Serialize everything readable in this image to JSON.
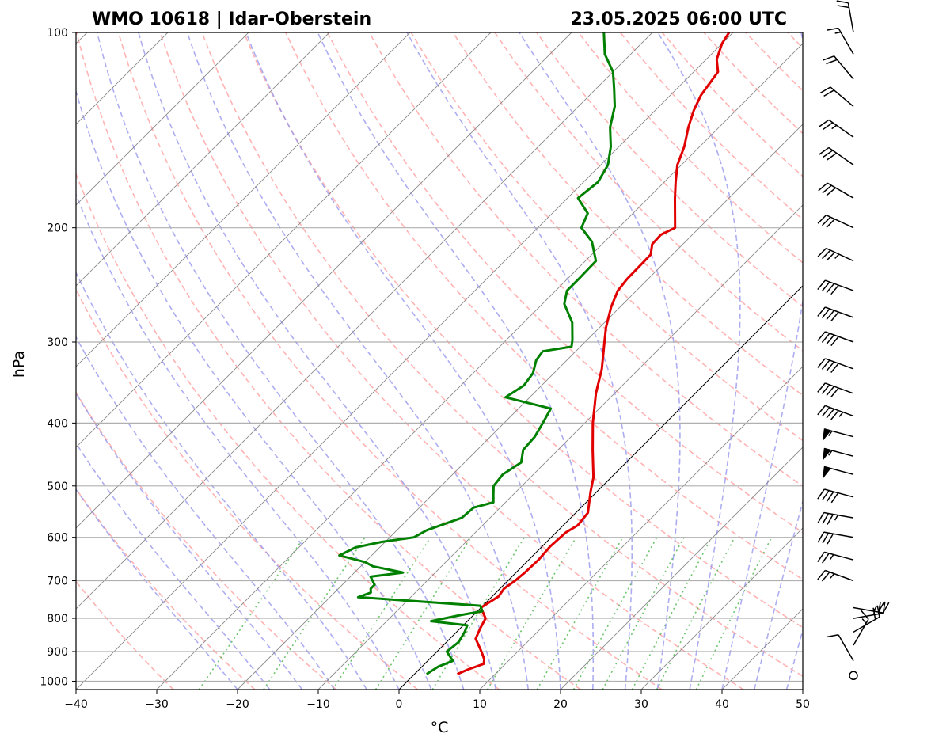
{
  "title_left": "WMO 10618 | Idar-Oberstein",
  "title_right": "23.05.2025 06:00 UTC",
  "chart_data": {
    "type": "line",
    "subtype": "skew-t log-p",
    "xlabel": "°C",
    "ylabel": "hPa",
    "xlim": [
      -40,
      50
    ],
    "ylim": [
      1030,
      100
    ],
    "x_ticks": [
      -40,
      -30,
      -20,
      -10,
      0,
      10,
      20,
      30,
      40,
      50
    ],
    "y_ticks": [
      100,
      200,
      300,
      400,
      500,
      600,
      700,
      800,
      900,
      1000
    ],
    "grid": true,
    "colors": {
      "temperature": "#e00000",
      "dewpoint": "#008000",
      "dry_adiabat": "#ff9999",
      "moist_adiabat": "#9999ee",
      "mixing_ratio": "#55bb55",
      "isotherm": "#888888",
      "zero_isotherm": "#000000"
    },
    "series": [
      {
        "key": "temperature",
        "values": [
          [
            975,
            5.3
          ],
          [
            960,
            6.0
          ],
          [
            940,
            7.3
          ],
          [
            925,
            6.8
          ],
          [
            900,
            5.5
          ],
          [
            860,
            3.2
          ],
          [
            830,
            2.5
          ],
          [
            800,
            1.9
          ],
          [
            770,
            0
          ],
          [
            740,
            0.8
          ],
          [
            720,
            0.5
          ],
          [
            700,
            0.9
          ],
          [
            680,
            1.1
          ],
          [
            650,
            1.2
          ],
          [
            620,
            1.0
          ],
          [
            590,
            1.2
          ],
          [
            575,
            1.8
          ],
          [
            550,
            1.5
          ],
          [
            510,
            -0.8
          ],
          [
            485,
            -2.2
          ],
          [
            440,
            -5.7
          ],
          [
            400,
            -9.0
          ],
          [
            360,
            -12.3
          ],
          [
            330,
            -14.6
          ],
          [
            300,
            -17.6
          ],
          [
            285,
            -19.2
          ],
          [
            265,
            -21.1
          ],
          [
            250,
            -22.3
          ],
          [
            240,
            -22.6
          ],
          [
            220,
            -22.7
          ],
          [
            212,
            -23.8
          ],
          [
            205,
            -23.9
          ],
          [
            200,
            -23.0
          ],
          [
            190,
            -24.8
          ],
          [
            180,
            -26.7
          ],
          [
            170,
            -28.6
          ],
          [
            160,
            -30.5
          ],
          [
            150,
            -31.9
          ],
          [
            140,
            -33.8
          ],
          [
            132,
            -35.2
          ],
          [
            125,
            -36.2
          ],
          [
            115,
            -37.0
          ],
          [
            110,
            -38.7
          ],
          [
            104,
            -40.0
          ],
          [
            100,
            -40.5
          ]
        ]
      },
      {
        "key": "dewpoint",
        "values": [
          [
            975,
            1.5
          ],
          [
            950,
            2.0
          ],
          [
            930,
            3.1
          ],
          [
            900,
            1.2
          ],
          [
            870,
            1.5
          ],
          [
            840,
            1.0
          ],
          [
            820,
            0.5
          ],
          [
            808,
            -4.5
          ],
          [
            790,
            -1.5
          ],
          [
            780,
            0.6
          ],
          [
            765,
            -0.3
          ],
          [
            742,
            -16.5
          ],
          [
            730,
            -15.5
          ],
          [
            720,
            -16.0
          ],
          [
            710,
            -16.0
          ],
          [
            690,
            -17.5
          ],
          [
            680,
            -14.0
          ],
          [
            665,
            -18.5
          ],
          [
            655,
            -20.0
          ],
          [
            640,
            -24.0
          ],
          [
            622,
            -23.0
          ],
          [
            610,
            -20.5
          ],
          [
            600,
            -17.0
          ],
          [
            585,
            -16.3
          ],
          [
            560,
            -13.5
          ],
          [
            540,
            -13.3
          ],
          [
            530,
            -11.5
          ],
          [
            515,
            -12.5
          ],
          [
            500,
            -13.5
          ],
          [
            480,
            -13.8
          ],
          [
            460,
            -13.0
          ],
          [
            440,
            -14.3
          ],
          [
            420,
            -14.5
          ],
          [
            400,
            -15.2
          ],
          [
            380,
            -16.0
          ],
          [
            365,
            -23.0
          ],
          [
            350,
            -22.2
          ],
          [
            335,
            -22.6
          ],
          [
            320,
            -23.8
          ],
          [
            310,
            -24.1
          ],
          [
            305,
            -21.1
          ],
          [
            298,
            -21.8
          ],
          [
            280,
            -24.0
          ],
          [
            262,
            -27.3
          ],
          [
            250,
            -28.6
          ],
          [
            240,
            -28.6
          ],
          [
            225,
            -28.7
          ],
          [
            210,
            -31.6
          ],
          [
            200,
            -34.6
          ],
          [
            190,
            -35.6
          ],
          [
            180,
            -38.7
          ],
          [
            170,
            -38.2
          ],
          [
            160,
            -39.1
          ],
          [
            150,
            -41.0
          ],
          [
            140,
            -43.5
          ],
          [
            130,
            -45.5
          ],
          [
            122,
            -47.8
          ],
          [
            115,
            -50.0
          ],
          [
            108,
            -53.2
          ],
          [
            100,
            -56.0
          ]
        ]
      }
    ],
    "wind_barbs": [
      {
        "p": 980,
        "speed_kt": 0,
        "dir": 0
      },
      {
        "p": 930,
        "speed_kt": 10,
        "dir": 330
      },
      {
        "p": 880,
        "speed_kt": 15,
        "dir": 30
      },
      {
        "p": 840,
        "speed_kt": 20,
        "dir": 60
      },
      {
        "p": 800,
        "speed_kt": 25,
        "dir": 80
      },
      {
        "p": 770,
        "speed_kt": 25,
        "dir": 100
      },
      {
        "p": 700,
        "speed_kt": 25,
        "dir": 290
      },
      {
        "p": 650,
        "speed_kt": 25,
        "dir": 285
      },
      {
        "p": 600,
        "speed_kt": 30,
        "dir": 280
      },
      {
        "p": 560,
        "speed_kt": 35,
        "dir": 280
      },
      {
        "p": 520,
        "speed_kt": 40,
        "dir": 285
      },
      {
        "p": 480,
        "speed_kt": 50,
        "dir": 285
      },
      {
        "p": 450,
        "speed_kt": 55,
        "dir": 285
      },
      {
        "p": 420,
        "speed_kt": 55,
        "dir": 285
      },
      {
        "p": 390,
        "speed_kt": 45,
        "dir": 290
      },
      {
        "p": 360,
        "speed_kt": 40,
        "dir": 290
      },
      {
        "p": 330,
        "speed_kt": 40,
        "dir": 290
      },
      {
        "p": 300,
        "speed_kt": 40,
        "dir": 290
      },
      {
        "p": 275,
        "speed_kt": 40,
        "dir": 290
      },
      {
        "p": 250,
        "speed_kt": 40,
        "dir": 290
      },
      {
        "p": 225,
        "speed_kt": 35,
        "dir": 295
      },
      {
        "p": 200,
        "speed_kt": 30,
        "dir": 295
      },
      {
        "p": 180,
        "speed_kt": 30,
        "dir": 300
      },
      {
        "p": 160,
        "speed_kt": 30,
        "dir": 305
      },
      {
        "p": 145,
        "speed_kt": 25,
        "dir": 305
      },
      {
        "p": 130,
        "speed_kt": 20,
        "dir": 310
      },
      {
        "p": 118,
        "speed_kt": 20,
        "dir": 320
      },
      {
        "p": 108,
        "speed_kt": 15,
        "dir": 330
      },
      {
        "p": 100,
        "speed_kt": 20,
        "dir": 350
      }
    ]
  }
}
